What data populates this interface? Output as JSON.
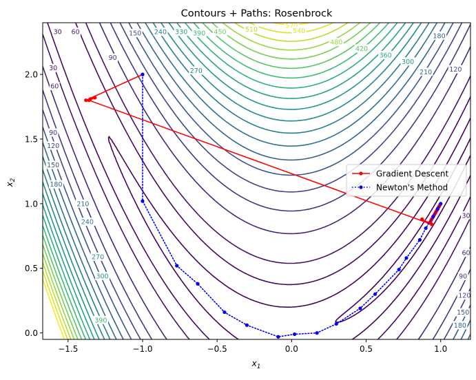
{
  "chart_data": {
    "type": "contour",
    "title": "Contours + Paths: Rosenbrock",
    "xlabel_base": "x",
    "xlabel_sub": "1",
    "ylabel_base": "x",
    "ylabel_sub": "2",
    "xlim": [
      -1.67,
      1.2
    ],
    "ylim": [
      -0.05,
      2.4
    ],
    "xticks": [
      -1.5,
      -1.0,
      -0.5,
      0.0,
      0.5,
      1.0
    ],
    "xtick_labels": [
      "−1.5",
      "−1.0",
      "−0.5",
      "0.0",
      "0.5",
      "1.0"
    ],
    "yticks": [
      0.0,
      0.5,
      1.0,
      1.5,
      2.0
    ],
    "ytick_labels": [
      "0.0",
      "0.5",
      "1.0",
      "1.5",
      "2.0"
    ],
    "contour_levels": [
      0.5,
      5,
      15,
      30,
      60,
      90,
      120,
      150,
      180,
      210,
      240,
      270,
      300,
      330,
      360,
      390,
      420,
      450,
      480,
      510,
      540,
      570
    ],
    "contour_labels": [
      {
        "text": "30",
        "x": -1.57,
        "y": 2.33
      },
      {
        "text": "60",
        "x": -1.45,
        "y": 2.33
      },
      {
        "text": "90",
        "x": -1.2,
        "y": 2.13
      },
      {
        "text": "150",
        "x": -1.05,
        "y": 2.32
      },
      {
        "text": "240",
        "x": -0.88,
        "y": 2.33
      },
      {
        "text": "330",
        "x": -0.74,
        "y": 2.33
      },
      {
        "text": "390",
        "x": -0.62,
        "y": 2.32
      },
      {
        "text": "450",
        "x": -0.48,
        "y": 2.33
      },
      {
        "text": "510",
        "x": -0.27,
        "y": 2.35
      },
      {
        "text": "570",
        "x": 0.0,
        "y": 2.38
      },
      {
        "text": "540",
        "x": 0.05,
        "y": 2.34
      },
      {
        "text": "480",
        "x": 0.3,
        "y": 2.25
      },
      {
        "text": "420",
        "x": 0.47,
        "y": 2.2
      },
      {
        "text": "360",
        "x": 0.63,
        "y": 2.15
      },
      {
        "text": "300",
        "x": 0.78,
        "y": 2.1
      },
      {
        "text": "270",
        "x": -0.64,
        "y": 2.03
      },
      {
        "text": "210",
        "x": 0.9,
        "y": 2.02
      },
      {
        "text": "180",
        "x": 0.99,
        "y": 2.3
      },
      {
        "text": "120",
        "x": 1.1,
        "y": 2.04
      },
      {
        "text": "30",
        "x": -1.6,
        "y": 2.05
      },
      {
        "text": "60",
        "x": -1.59,
        "y": 1.91
      },
      {
        "text": "90",
        "x": -1.6,
        "y": 1.55
      },
      {
        "text": "120",
        "x": -1.6,
        "y": 1.45
      },
      {
        "text": "150",
        "x": -1.6,
        "y": 1.3
      },
      {
        "text": "180",
        "x": -1.58,
        "y": 1.15
      },
      {
        "text": "210",
        "x": -1.4,
        "y": 1.0
      },
      {
        "text": "240",
        "x": -1.37,
        "y": 0.86
      },
      {
        "text": "270",
        "x": -1.3,
        "y": 0.59
      },
      {
        "text": "300",
        "x": -1.27,
        "y": 0.44
      },
      {
        "text": "390",
        "x": -1.28,
        "y": 0.1
      },
      {
        "text": "30",
        "x": 1.17,
        "y": 0.91
      },
      {
        "text": "60",
        "x": 1.17,
        "y": 0.62
      },
      {
        "text": "90",
        "x": 1.15,
        "y": 0.44
      },
      {
        "text": "120",
        "x": 1.16,
        "y": 0.29
      },
      {
        "text": "150",
        "x": 1.15,
        "y": 0.16
      },
      {
        "text": "180",
        "x": 1.13,
        "y": 0.06
      }
    ],
    "series": [
      {
        "name": "Gradient Descent",
        "color": "#ff0000",
        "linestyle": "solid",
        "marker": "circle",
        "points": [
          [
            -1.0,
            2.0
          ],
          [
            -1.38,
            1.8
          ],
          [
            -1.35,
            1.81
          ],
          [
            -1.32,
            1.82
          ],
          [
            -1.36,
            1.8
          ],
          [
            0.94,
            0.84
          ],
          [
            0.875,
            0.88
          ],
          [
            0.92,
            0.85
          ],
          [
            0.93,
            0.855
          ],
          [
            0.935,
            0.87
          ],
          [
            0.94,
            0.88
          ],
          [
            0.945,
            0.89
          ],
          [
            0.95,
            0.9
          ],
          [
            0.955,
            0.91
          ],
          [
            0.96,
            0.92
          ],
          [
            0.965,
            0.93
          ],
          [
            0.97,
            0.94
          ],
          [
            0.975,
            0.95
          ],
          [
            0.98,
            0.96
          ],
          [
            0.985,
            0.97
          ],
          [
            0.99,
            0.98
          ],
          [
            0.995,
            0.99
          ]
        ]
      },
      {
        "name": "Newton's Method",
        "color": "#0000ff",
        "linestyle": "dotted",
        "marker": "circle",
        "points": [
          [
            -1.0,
            2.0
          ],
          [
            -1.0,
            1.02
          ],
          [
            -0.77,
            0.52
          ],
          [
            -0.63,
            0.38
          ],
          [
            -0.45,
            0.16
          ],
          [
            -0.3,
            0.06
          ],
          [
            -0.09,
            -0.03
          ],
          [
            0.02,
            -0.01
          ],
          [
            0.17,
            0.0
          ],
          [
            0.3,
            0.07
          ],
          [
            0.46,
            0.19
          ],
          [
            0.56,
            0.3
          ],
          [
            0.72,
            0.49
          ],
          [
            0.77,
            0.58
          ],
          [
            0.86,
            0.72
          ],
          [
            0.9,
            0.81
          ],
          [
            0.95,
            0.9
          ],
          [
            0.98,
            0.96
          ],
          [
            1.0,
            1.0
          ]
        ]
      }
    ],
    "legend_position": "center-right",
    "grid": false
  }
}
